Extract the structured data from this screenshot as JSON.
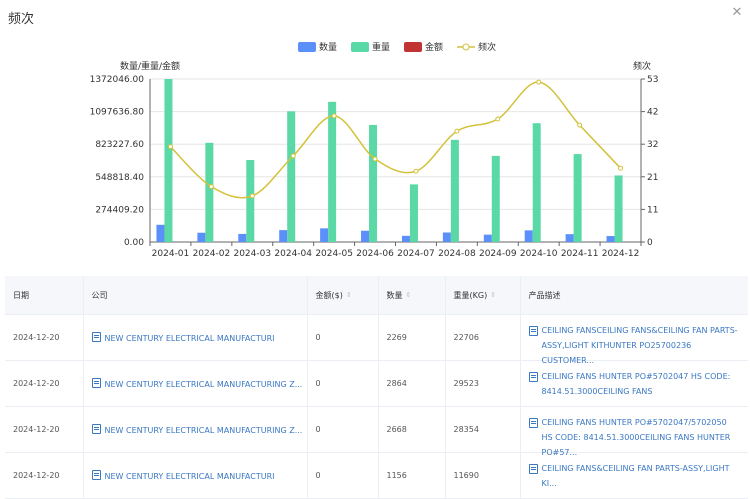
{
  "dialog": {
    "title": "频次",
    "close_icon": "close-icon"
  },
  "chart_data": {
    "type": "bar",
    "categories": [
      "2024-01",
      "2024-02",
      "2024-03",
      "2024-04",
      "2024-05",
      "2024-06",
      "2024-07",
      "2024-08",
      "2024-09",
      "2024-10",
      "2024-11",
      "2024-12"
    ],
    "legend": [
      "数量",
      "重量",
      "金额",
      "频次"
    ],
    "left_axis_title": "数量/重量/金额",
    "right_axis_title": "频次",
    "left_ticks": [
      "1372046.00",
      "1097636.80",
      "823227.60",
      "548818.40",
      "274409.20",
      "0.00"
    ],
    "right_ticks": [
      "53",
      "42",
      "32",
      "21",
      "11",
      "0"
    ],
    "ylim_left": [
      0,
      1372046
    ],
    "ylim_right": [
      0,
      53
    ],
    "series": [
      {
        "name": "数量",
        "color": "#5b8ff9",
        "axis": "left",
        "values": [
          145000,
          78000,
          68000,
          100000,
          115000,
          95000,
          52000,
          80000,
          62000,
          98000,
          66000,
          50000
        ]
      },
      {
        "name": "重量",
        "color": "#5ad8a6",
        "axis": "left",
        "values": [
          1372000,
          835000,
          690000,
          1100000,
          1180000,
          985000,
          485000,
          860000,
          725000,
          1000000,
          740000,
          560000
        ]
      },
      {
        "name": "金额",
        "color": "#c03533",
        "axis": "left",
        "values": [
          0,
          0,
          0,
          0,
          0,
          0,
          0,
          0,
          0,
          0,
          0,
          0
        ]
      },
      {
        "name": "频次",
        "color": "#d4c13a",
        "axis": "right",
        "type": "line",
        "values": [
          31,
          18,
          15,
          28,
          41,
          27,
          23,
          36,
          40,
          52,
          38,
          24
        ]
      }
    ]
  },
  "table": {
    "columns": [
      "日期",
      "公司",
      "金额($)",
      "数量",
      "重量(KG)",
      "产品描述"
    ],
    "rows": [
      {
        "date": "2024-12-20",
        "company": "NEW CENTURY ELECTRICAL MANUFACTURI",
        "amount": "0",
        "qty": "2269",
        "weight": "22706",
        "desc": "CEILING FANSCEILING FANS&CEILING FAN PARTS-ASSY,LIGHT KITHUNTER PO25700236 CUSTOMER..."
      },
      {
        "date": "2024-12-20",
        "company": "NEW CENTURY ELECTRICAL MANUFACTURING Z...",
        "amount": "0",
        "qty": "2864",
        "weight": "29523",
        "desc": "CEILING FANS HUNTER PO#5702047 HS CODE: 8414.51.3000CEILING FANS"
      },
      {
        "date": "2024-12-20",
        "company": "NEW CENTURY ELECTRICAL MANUFACTURING Z...",
        "amount": "0",
        "qty": "2668",
        "weight": "28354",
        "desc": "CEILING FANS HUNTER PO#5702047/5702050 HS CODE: 8414.51.3000CEILING FANS HUNTER PO#57..."
      },
      {
        "date": "2024-12-20",
        "company": "NEW CENTURY ELECTRICAL MANUFACTURI",
        "amount": "0",
        "qty": "1156",
        "weight": "11690",
        "desc": "CEILING FANS&CEILING FAN PARTS-ASSY,LIGHT KI..."
      }
    ]
  }
}
